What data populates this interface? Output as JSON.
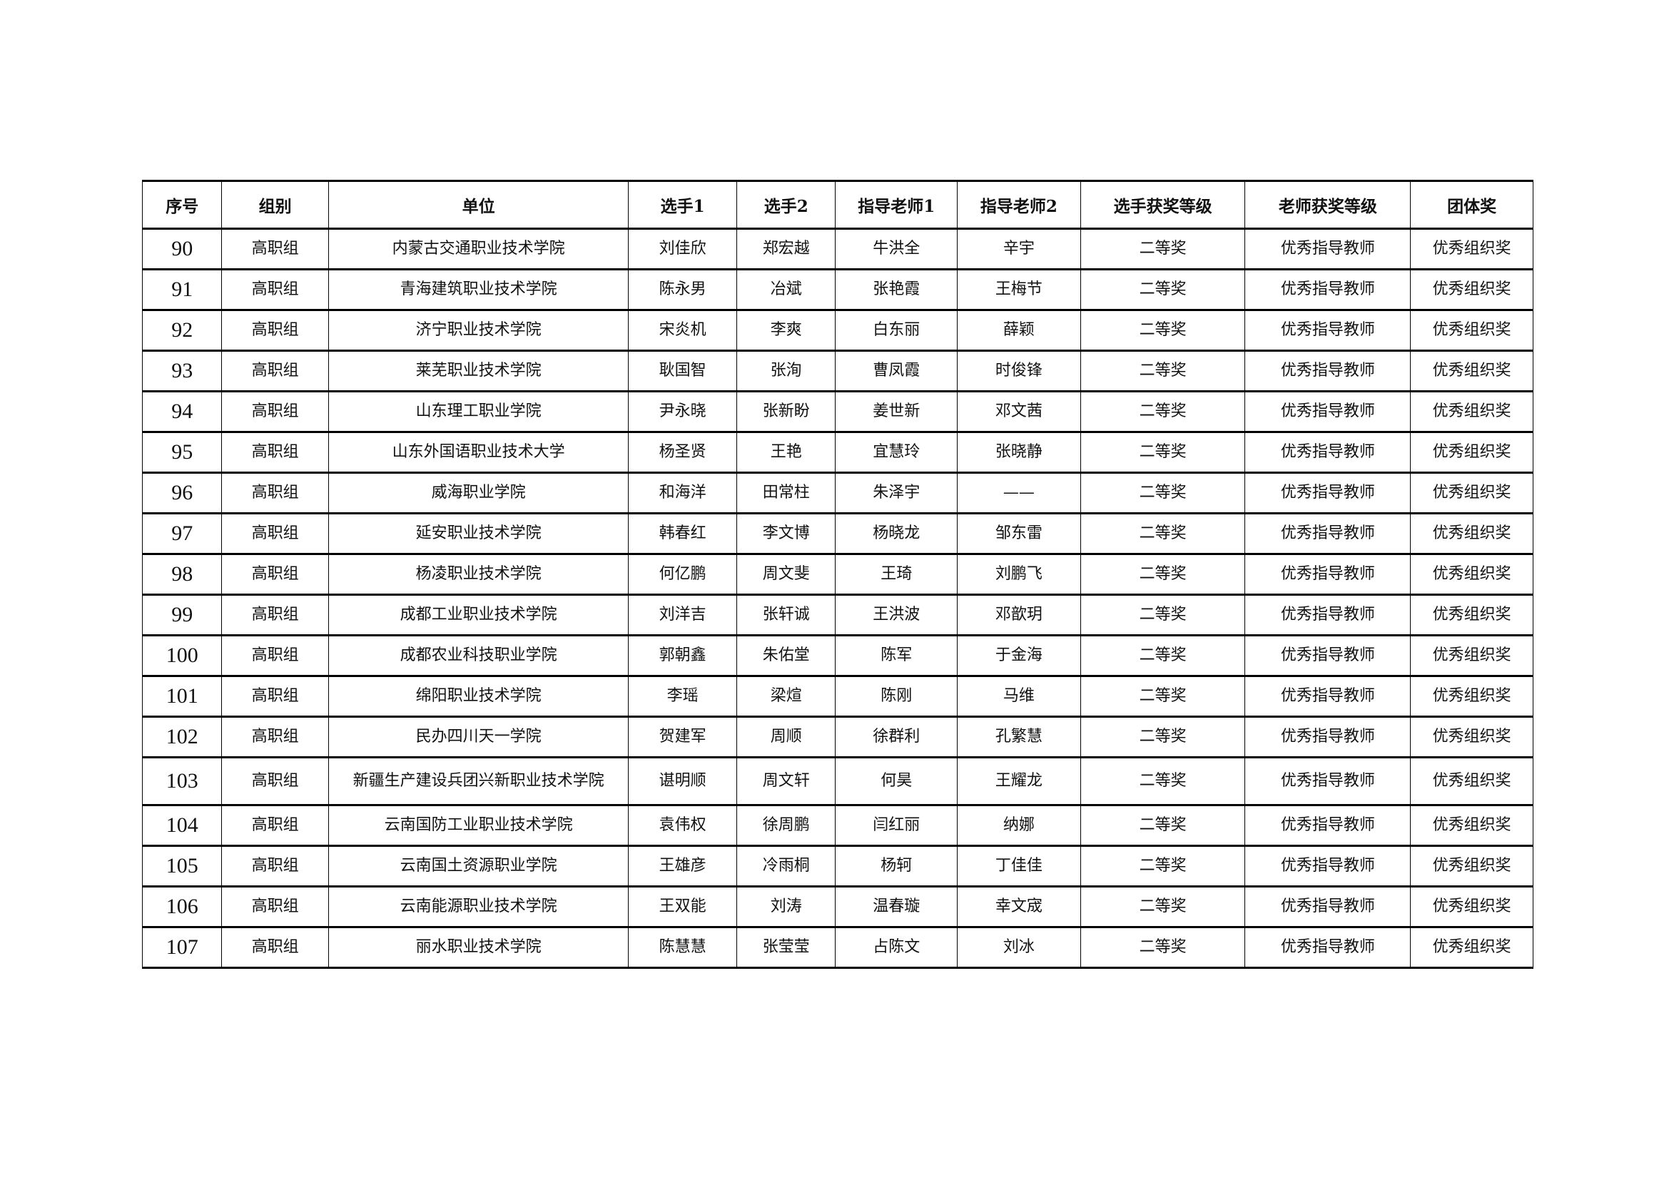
{
  "headers": [
    "序号",
    "组别",
    "单位",
    "选手1",
    "选手2",
    "指导老师1",
    "指导老师2",
    "选手获奖等级",
    "老师获奖等级",
    "团体奖"
  ],
  "rows": [
    [
      "90",
      "高职组",
      "内蒙古交通职业技术学院",
      "刘佳欣",
      "郑宏越",
      "牛洪全",
      "辛宇",
      "二等奖",
      "优秀指导教师",
      "优秀组织奖"
    ],
    [
      "91",
      "高职组",
      "青海建筑职业技术学院",
      "陈永男",
      "冶斌",
      "张艳霞",
      "王梅节",
      "二等奖",
      "优秀指导教师",
      "优秀组织奖"
    ],
    [
      "92",
      "高职组",
      "济宁职业技术学院",
      "宋炎机",
      "李爽",
      "白东丽",
      "薛颖",
      "二等奖",
      "优秀指导教师",
      "优秀组织奖"
    ],
    [
      "93",
      "高职组",
      "莱芜职业技术学院",
      "耿国智",
      "张洵",
      "曹凤霞",
      "时俊锋",
      "二等奖",
      "优秀指导教师",
      "优秀组织奖"
    ],
    [
      "94",
      "高职组",
      "山东理工职业学院",
      "尹永晓",
      "张新盼",
      "姜世新",
      "邓文茜",
      "二等奖",
      "优秀指导教师",
      "优秀组织奖"
    ],
    [
      "95",
      "高职组",
      "山东外国语职业技术大学",
      "杨圣贤",
      "王艳",
      "宜慧玲",
      "张晓静",
      "二等奖",
      "优秀指导教师",
      "优秀组织奖"
    ],
    [
      "96",
      "高职组",
      "威海职业学院",
      "和海洋",
      "田常柱",
      "朱泽宇",
      "——",
      "二等奖",
      "优秀指导教师",
      "优秀组织奖"
    ],
    [
      "97",
      "高职组",
      "延安职业技术学院",
      "韩春红",
      "李文博",
      "杨晓龙",
      "邹东雷",
      "二等奖",
      "优秀指导教师",
      "优秀组织奖"
    ],
    [
      "98",
      "高职组",
      "杨凌职业技术学院",
      "何亿鹏",
      "周文斐",
      "王琦",
      "刘鹏飞",
      "二等奖",
      "优秀指导教师",
      "优秀组织奖"
    ],
    [
      "99",
      "高职组",
      "成都工业职业技术学院",
      "刘洋吉",
      "张轩诚",
      "王洪波",
      "邓歆玥",
      "二等奖",
      "优秀指导教师",
      "优秀组织奖"
    ],
    [
      "100",
      "高职组",
      "成都农业科技职业学院",
      "郭朝鑫",
      "朱佑堂",
      "陈军",
      "于金海",
      "二等奖",
      "优秀指导教师",
      "优秀组织奖"
    ],
    [
      "101",
      "高职组",
      "绵阳职业技术学院",
      "李瑶",
      "梁煊",
      "陈刚",
      "马维",
      "二等奖",
      "优秀指导教师",
      "优秀组织奖"
    ],
    [
      "102",
      "高职组",
      "民办四川天一学院",
      "贺建军",
      "周顺",
      "徐群利",
      "孔繁慧",
      "二等奖",
      "优秀指导教师",
      "优秀组织奖"
    ],
    [
      "103",
      "高职组",
      "新疆生产建设兵团兴新职业技术学院",
      "谌明顺",
      "周文轩",
      "何昊",
      "王耀龙",
      "二等奖",
      "优秀指导教师",
      "优秀组织奖"
    ],
    [
      "104",
      "高职组",
      "云南国防工业职业技术学院",
      "袁伟权",
      "徐周鹏",
      "闫红丽",
      "纳娜",
      "二等奖",
      "优秀指导教师",
      "优秀组织奖"
    ],
    [
      "105",
      "高职组",
      "云南国土资源职业学院",
      "王雄彦",
      "冷雨桐",
      "杨轲",
      "丁佳佳",
      "二等奖",
      "优秀指导教师",
      "优秀组织奖"
    ],
    [
      "106",
      "高职组",
      "云南能源职业技术学院",
      "王双能",
      "刘涛",
      "温春璇",
      "幸文宬",
      "二等奖",
      "优秀指导教师",
      "优秀组织奖"
    ],
    [
      "107",
      "高职组",
      "丽水职业技术学院",
      "陈慧慧",
      "张莹莹",
      "占陈文",
      "刘冰",
      "二等奖",
      "优秀指导教师",
      "优秀组织奖"
    ]
  ]
}
